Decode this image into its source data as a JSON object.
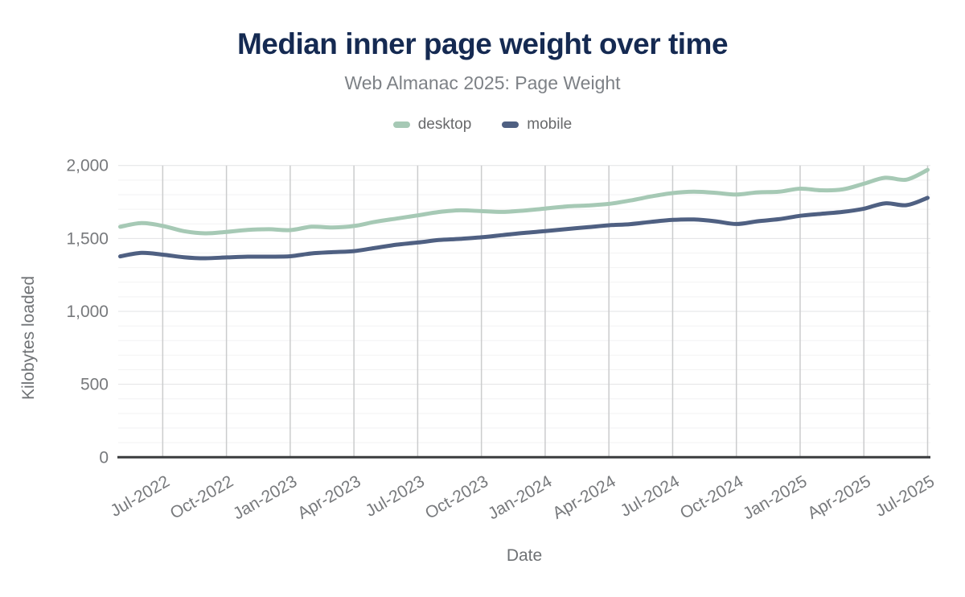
{
  "title": "Median inner page weight over time",
  "subtitle": "Web Almanac 2025: Page Weight",
  "legend": {
    "items": [
      {
        "label": "desktop",
        "color": "#a6c9b5"
      },
      {
        "label": "mobile",
        "color": "#4f6082"
      }
    ]
  },
  "colors": {
    "title": "#152a52",
    "subtitle": "#7d8186",
    "tick_text": "#77797c",
    "axis_title_text": "#6f7275",
    "axis_line": "#3a3c3e",
    "grid_vertical": "#cbcccd",
    "grid_major_h": "#e2e3e5",
    "grid_minor_h": "#f2f2f3"
  },
  "chart_data": {
    "type": "line",
    "title": "Median inner page weight over time",
    "subtitle": "Web Almanac 2025: Page Weight",
    "xlabel": "Date",
    "ylabel": "Kilobytes loaded",
    "ylim": [
      0,
      2000
    ],
    "yticks": [
      0,
      500,
      1000,
      1500,
      2000
    ],
    "ytick_labels": [
      "0",
      "500",
      "1,000",
      "1,500",
      "2,000"
    ],
    "y_minor_step": 100,
    "grid": {
      "vertical_at_xticks": true,
      "legend_position": "top"
    },
    "x": [
      "May-2022",
      "Jun-2022",
      "Jul-2022",
      "Aug-2022",
      "Sep-2022",
      "Oct-2022",
      "Nov-2022",
      "Dec-2022",
      "Jan-2023",
      "Feb-2023",
      "Mar-2023",
      "Apr-2023",
      "May-2023",
      "Jun-2023",
      "Jul-2023",
      "Aug-2023",
      "Sep-2023",
      "Oct-2023",
      "Nov-2023",
      "Dec-2023",
      "Jan-2024",
      "Feb-2024",
      "Mar-2024",
      "Apr-2024",
      "May-2024",
      "Jun-2024",
      "Jul-2024",
      "Aug-2024",
      "Sep-2024",
      "Oct-2024",
      "Nov-2024",
      "Dec-2024",
      "Jan-2025",
      "Feb-2025",
      "Mar-2025",
      "Apr-2025",
      "May-2025",
      "Jun-2025",
      "Jul-2025"
    ],
    "xtick_labels": [
      "Jul-2022",
      "Oct-2022",
      "Jan-2023",
      "Apr-2023",
      "Jul-2023",
      "Oct-2023",
      "Jan-2024",
      "Apr-2024",
      "Jul-2024",
      "Oct-2024",
      "Jan-2025",
      "Apr-2025",
      "Jul-2025"
    ],
    "series": [
      {
        "name": "desktop",
        "color": "#a6c9b5",
        "values": [
          1580,
          1605,
          1586,
          1550,
          1535,
          1545,
          1559,
          1563,
          1557,
          1580,
          1575,
          1585,
          1614,
          1636,
          1658,
          1681,
          1693,
          1687,
          1682,
          1691,
          1705,
          1719,
          1726,
          1737,
          1760,
          1788,
          1811,
          1820,
          1813,
          1801,
          1816,
          1820,
          1841,
          1830,
          1836,
          1875,
          1916,
          1903,
          1970
        ]
      },
      {
        "name": "mobile",
        "color": "#4f6082",
        "values": [
          1377,
          1401,
          1389,
          1371,
          1364,
          1370,
          1375,
          1375,
          1378,
          1397,
          1406,
          1413,
          1435,
          1457,
          1472,
          1489,
          1497,
          1508,
          1523,
          1538,
          1550,
          1564,
          1577,
          1590,
          1598,
          1614,
          1627,
          1630,
          1618,
          1599,
          1618,
          1632,
          1655,
          1669,
          1682,
          1704,
          1741,
          1728,
          1778
        ]
      }
    ]
  }
}
